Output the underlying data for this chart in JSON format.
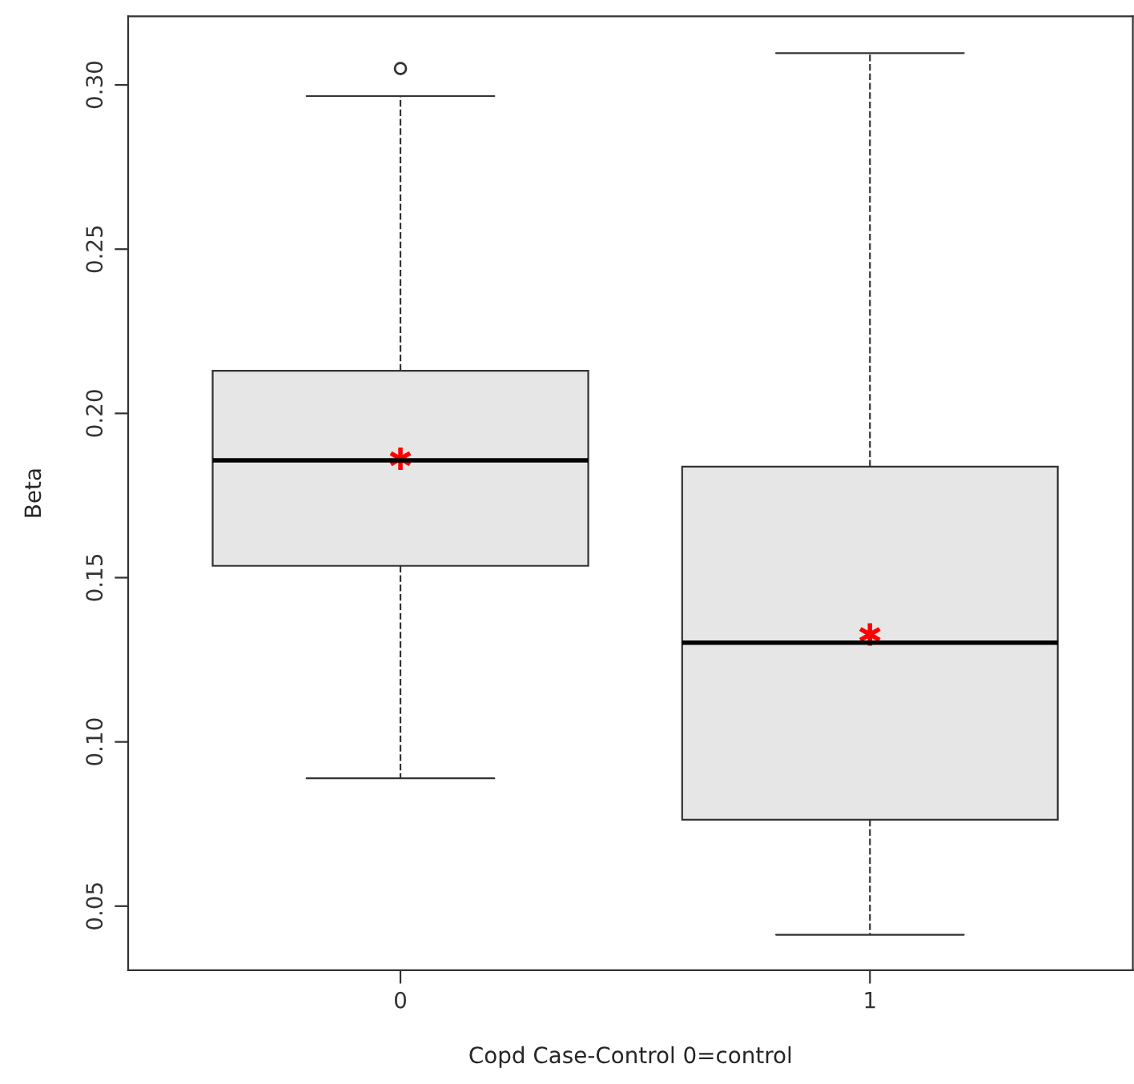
{
  "chart_data": {
    "type": "box",
    "xlabel": "Copd Case-Control 0=control",
    "ylabel": "Beta",
    "categories": [
      "0",
      "1"
    ],
    "boxes": [
      {
        "low": 0.0889,
        "q1": 0.1536,
        "median": 0.1857,
        "q3": 0.213,
        "high": 0.2966,
        "mean": 0.1862,
        "outliers": [
          0.305
        ]
      },
      {
        "low": 0.0413,
        "q1": 0.0763,
        "median": 0.1302,
        "q3": 0.1838,
        "high": 0.3097,
        "mean": 0.1327
      }
    ],
    "color": "#e6e6e6",
    "ylim": [
      0.0305,
      0.3209
    ],
    "yticks": [
      {
        "value": 0.05,
        "label": "0.05"
      },
      {
        "value": 0.1,
        "label": "0.10"
      },
      {
        "value": 0.15,
        "label": "0.15"
      },
      {
        "value": 0.2,
        "label": "0.20"
      },
      {
        "value": 0.25,
        "label": "0.25"
      },
      {
        "value": 0.3,
        "label": "0.30"
      }
    ],
    "grid": false,
    "legend": false
  }
}
